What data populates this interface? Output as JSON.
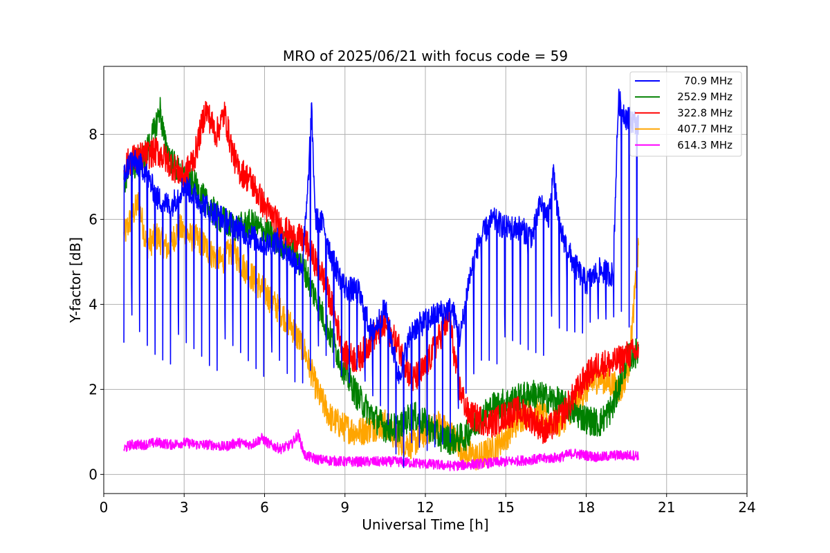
{
  "chart_data": {
    "type": "line",
    "title": "MRO of 2025/06/21 with focus code = 59",
    "xlabel": "Universal Time [h]",
    "ylabel": "Y-factor [dB]",
    "xlim": [
      0,
      24
    ],
    "ylim": [
      -0.45,
      9.6
    ],
    "xticks": [
      0,
      3,
      6,
      9,
      12,
      15,
      18,
      21,
      24
    ],
    "xtick_labels": [
      "0",
      "3",
      "6",
      "9",
      "12",
      "15",
      "18",
      "21",
      "24"
    ],
    "yticks": [
      0,
      2,
      4,
      6,
      8
    ],
    "ytick_labels": [
      "0",
      "2",
      "4",
      "6",
      "8"
    ],
    "grid": true,
    "legend_position": "top-right",
    "series": [
      {
        "name": " 70.9 MHz",
        "color": "#0000ff",
        "style": "spiky",
        "spike_period_h": 0.29,
        "spike_window_h": [
          0.75,
          19.9
        ],
        "x": [
          0.75,
          1.0,
          1.5,
          2.0,
          2.5,
          3.0,
          3.5,
          4.0,
          4.5,
          5.0,
          5.5,
          6.0,
          6.5,
          7.0,
          7.4,
          7.6,
          7.75,
          7.9,
          8.2,
          8.5,
          9.0,
          9.5,
          10.0,
          10.5,
          11.0,
          11.5,
          12.0,
          12.5,
          13.0,
          13.3,
          13.6,
          14.0,
          14.5,
          15.0,
          15.5,
          16.0,
          16.3,
          16.6,
          16.75,
          17.0,
          17.5,
          18.0,
          18.5,
          19.0,
          19.2,
          19.5,
          19.8,
          19.95
        ],
        "y": [
          7.0,
          7.4,
          7.2,
          6.5,
          6.3,
          6.8,
          6.5,
          6.2,
          6.0,
          5.8,
          5.6,
          5.4,
          5.5,
          5.1,
          4.9,
          6.5,
          8.6,
          6.0,
          5.9,
          5.1,
          4.4,
          4.3,
          3.3,
          3.9,
          2.3,
          3.4,
          3.6,
          3.8,
          3.9,
          3.2,
          4.5,
          5.5,
          6.0,
          5.8,
          5.8,
          5.6,
          6.4,
          6.0,
          7.2,
          5.8,
          5.0,
          4.5,
          4.8,
          4.7,
          8.8,
          8.4,
          8.3,
          8.2
        ],
        "spike_low": [
          3.1,
          2.9,
          2.5,
          2.5,
          2.6,
          2.4,
          2.5,
          2.4,
          2.5,
          2.5,
          2.4,
          2.3,
          2.2,
          1.9,
          2.0,
          2.3,
          2.5,
          2.3,
          2.3,
          2.2,
          2.1,
          2.0,
          1.6,
          1.2,
          0.2,
          0.1,
          0.1,
          0.5,
          0.8,
          1.2,
          1.6,
          2.4,
          2.6,
          2.6,
          2.7,
          2.7,
          2.8,
          2.8,
          3.0,
          3.0,
          3.2,
          3.3,
          3.4,
          3.5,
          3.5,
          3.3,
          3.2,
          3.2
        ]
      },
      {
        "name": "252.9 MHz",
        "color": "#008000",
        "x": [
          0.75,
          1.0,
          1.3,
          1.6,
          1.9,
          2.1,
          2.3,
          2.6,
          3.0,
          3.4,
          3.8,
          4.2,
          4.6,
          5.0,
          5.5,
          6.0,
          6.5,
          7.0,
          7.5,
          8.0,
          8.5,
          9.0,
          9.5,
          10.0,
          10.5,
          11.0,
          11.5,
          12.0,
          12.5,
          13.0,
          13.5,
          14.0,
          14.5,
          15.0,
          15.5,
          16.0,
          16.5,
          17.0,
          17.5,
          18.0,
          18.5,
          19.0,
          19.5,
          19.95
        ],
        "y": [
          6.8,
          7.2,
          7.3,
          7.6,
          8.1,
          8.6,
          7.7,
          7.3,
          7.0,
          6.8,
          6.4,
          6.1,
          5.9,
          5.8,
          5.9,
          5.7,
          5.5,
          5.3,
          4.8,
          4.0,
          3.2,
          2.4,
          1.8,
          1.4,
          1.1,
          1.1,
          1.4,
          1.2,
          0.9,
          0.8,
          0.9,
          1.3,
          1.6,
          1.7,
          1.8,
          1.9,
          1.8,
          1.7,
          1.5,
          1.3,
          1.2,
          1.6,
          2.7,
          2.9
        ],
        "band": 0.35
      },
      {
        "name": "322.8 MHz",
        "color": "#ff0000",
        "x": [
          0.75,
          1.0,
          1.5,
          2.0,
          2.5,
          3.0,
          3.4,
          3.8,
          4.2,
          4.5,
          4.8,
          5.0,
          5.5,
          6.0,
          6.5,
          7.0,
          7.5,
          7.8,
          8.1,
          8.5,
          9.0,
          9.5,
          10.0,
          10.5,
          11.0,
          11.5,
          12.0,
          12.5,
          12.9,
          13.2,
          13.6,
          14.0,
          14.5,
          15.0,
          15.5,
          16.0,
          16.5,
          17.0,
          17.5,
          18.0,
          18.5,
          19.0,
          19.5,
          19.95
        ],
        "y": [
          7.2,
          7.4,
          7.5,
          7.6,
          7.3,
          7.0,
          7.5,
          8.6,
          8.0,
          8.5,
          7.6,
          7.2,
          6.9,
          6.3,
          5.9,
          5.6,
          5.5,
          5.1,
          4.8,
          4.0,
          2.8,
          2.7,
          3.2,
          3.5,
          3.0,
          2.2,
          2.5,
          3.2,
          3.7,
          2.2,
          1.4,
          1.3,
          1.2,
          1.4,
          1.5,
          1.3,
          1.0,
          1.3,
          1.8,
          2.3,
          2.6,
          2.6,
          2.8,
          2.9
        ],
        "band": 0.35
      },
      {
        "name": "407.7 MHz",
        "color": "#ffa500",
        "x": [
          0.75,
          1.0,
          1.3,
          1.6,
          2.0,
          2.4,
          2.8,
          3.2,
          3.6,
          4.0,
          4.4,
          4.8,
          5.2,
          5.6,
          6.0,
          6.5,
          7.0,
          7.5,
          8.0,
          8.5,
          9.0,
          9.5,
          10.0,
          10.5,
          11.0,
          11.5,
          12.0,
          12.5,
          13.0,
          13.5,
          14.0,
          14.5,
          15.0,
          15.5,
          16.0,
          16.5,
          17.0,
          17.5,
          18.0,
          18.5,
          19.0,
          19.3,
          19.6,
          19.95
        ],
        "y": [
          5.6,
          6.0,
          6.4,
          5.4,
          5.6,
          5.3,
          5.8,
          5.6,
          5.5,
          5.2,
          5.0,
          5.3,
          4.9,
          4.6,
          4.3,
          3.9,
          3.5,
          2.9,
          1.9,
          1.3,
          1.1,
          1.0,
          1.1,
          1.2,
          0.8,
          0.7,
          1.0,
          1.2,
          0.9,
          0.5,
          0.4,
          0.6,
          0.9,
          1.3,
          1.5,
          1.3,
          1.2,
          1.6,
          2.0,
          2.3,
          2.1,
          2.0,
          2.6,
          5.3
        ],
        "band": 0.35
      },
      {
        "name": "614.3 MHz",
        "color": "#ff00ff",
        "x": [
          0.75,
          1.0,
          1.5,
          2.0,
          2.5,
          3.0,
          3.5,
          4.0,
          4.5,
          5.0,
          5.5,
          5.9,
          6.2,
          6.6,
          7.0,
          7.25,
          7.5,
          8.0,
          9.0,
          10.0,
          11.0,
          12.0,
          13.0,
          14.0,
          15.0,
          16.0,
          17.0,
          17.5,
          18.0,
          18.5,
          19.0,
          19.5,
          19.95
        ],
        "y": [
          0.6,
          0.7,
          0.7,
          0.75,
          0.7,
          0.75,
          0.7,
          0.7,
          0.65,
          0.75,
          0.7,
          0.85,
          0.7,
          0.6,
          0.7,
          0.95,
          0.45,
          0.35,
          0.3,
          0.3,
          0.3,
          0.25,
          0.2,
          0.25,
          0.3,
          0.35,
          0.4,
          0.5,
          0.45,
          0.4,
          0.45,
          0.45,
          0.45
        ],
        "band": 0.12
      }
    ]
  }
}
